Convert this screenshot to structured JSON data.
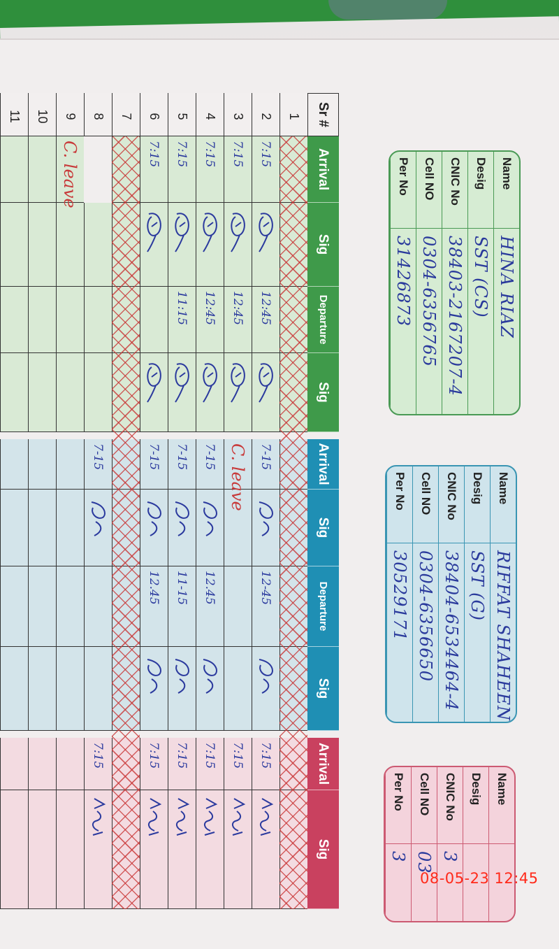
{
  "colors": {
    "green": "#3f9a4a",
    "blue": "#1f8fb4",
    "pink": "#c9415f",
    "ink": "#2b3a9e",
    "red_ink": "#c83a3a"
  },
  "info_labels": [
    "Name",
    "Desig",
    "CNIC No",
    "Cell NO",
    "Per No"
  ],
  "staff": [
    {
      "name": "HINA RIAZ",
      "desig": "SST (CS)",
      "cnic": "38403-2167207-4",
      "cell": "0304-6356765",
      "per_no": "31426873"
    },
    {
      "name": "RIFFAT SHAHEEN",
      "desig": "SST (G)",
      "cnic": "38404-6534464-4",
      "cell": "0304-6356650",
      "per_no": "30529171"
    },
    {
      "name": "",
      "desig": "",
      "cnic": "3",
      "cell": "03",
      "per_no": "3"
    }
  ],
  "table": {
    "sr_header": "Sr #",
    "green_headers": [
      "Arrival",
      "Sig",
      "Departure",
      "Sig"
    ],
    "blue_headers": [
      "Arrival",
      "Sig",
      "Departure",
      "Sig"
    ],
    "pink_headers": [
      "Arrival",
      "Sig"
    ],
    "rows": [
      {
        "sr": "1",
        "crossed": true,
        "g_arr": "",
        "g_dep": "",
        "b_arr": "",
        "b_dep": "",
        "p_arr": ""
      },
      {
        "sr": "2",
        "crossed": false,
        "g_arr": "7:15",
        "g_dep": "12:45",
        "b_arr": "7-15",
        "b_dep": "12-45",
        "p_arr": "7:15"
      },
      {
        "sr": "3",
        "crossed": false,
        "g_arr": "7:15",
        "g_dep": "12:45",
        "b_arr": "C. leave",
        "b_dep": "",
        "p_arr": "7:15"
      },
      {
        "sr": "4",
        "crossed": false,
        "g_arr": "7:15",
        "g_dep": "12:45",
        "b_arr": "7-15",
        "b_dep": "12.45",
        "p_arr": "7:15"
      },
      {
        "sr": "5",
        "crossed": false,
        "g_arr": "7:15",
        "g_dep": "11:15",
        "b_arr": "7-15",
        "b_dep": "11-15",
        "p_arr": "7:15"
      },
      {
        "sr": "6",
        "crossed": false,
        "g_arr": "7:15",
        "g_dep": "",
        "b_arr": "7-15",
        "b_dep": "12.45",
        "p_arr": "7:15"
      },
      {
        "sr": "7",
        "crossed": true,
        "g_arr": "",
        "g_dep": "",
        "b_arr": "",
        "b_dep": "",
        "p_arr": ""
      },
      {
        "sr": "8",
        "crossed": false,
        "g_arr": "C. leave",
        "g_dep": "",
        "b_arr": "7-15",
        "b_dep": "",
        "p_arr": "7:15"
      },
      {
        "sr": "9",
        "crossed": false,
        "g_arr": "",
        "g_dep": "",
        "b_arr": "",
        "b_dep": "",
        "p_arr": ""
      },
      {
        "sr": "10",
        "crossed": false,
        "g_arr": "",
        "g_dep": "",
        "b_arr": "",
        "b_dep": "",
        "p_arr": ""
      },
      {
        "sr": "11",
        "crossed": false,
        "g_arr": "",
        "g_dep": "",
        "b_arr": "",
        "b_dep": "",
        "p_arr": ""
      }
    ]
  },
  "camera_timestamp": "08-05-23 12:45"
}
